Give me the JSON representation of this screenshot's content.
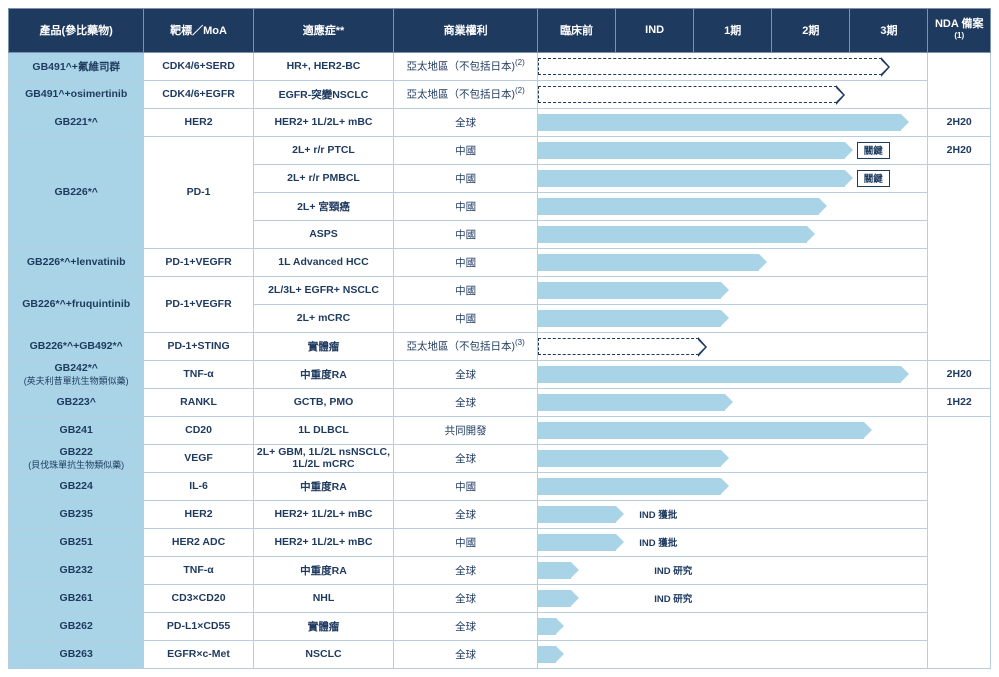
{
  "columns": {
    "product": "產品(參比藥物)",
    "moa": "靶標／MoA",
    "indication": "適應症**",
    "rights": "商業權利",
    "preclinical": "臨床前",
    "ind": "IND",
    "p1": "1期",
    "p2": "2期",
    "p3": "3期",
    "nda": "NDA 備案",
    "nda_sup": "(1)"
  },
  "phase_unit_width": 75,
  "colors": {
    "header_bg": "#1f3a5f",
    "header_fg": "#ffffff",
    "product_bg": "#a9d4e7",
    "bar_fill": "#a9d4e7",
    "border": "#b8cde0",
    "text": "#1f3a5f"
  },
  "rows": [
    {
      "product": "GB491^+氟維司群",
      "moa": "CDK4/6+SERD",
      "indication": "HR+, HER2-BC",
      "rights": "亞太地區（不包括日本)",
      "rights_sup": "(2)",
      "bar": {
        "dashed": true,
        "end_units": 4.7
      }
    },
    {
      "product": "GB491^+osimertinib",
      "moa": "CDK4/6+EGFR",
      "indication": "EGFR-突變NSCLC",
      "rights": "亞太地區（不包括日本)",
      "rights_sup": "(2)",
      "bar": {
        "dashed": true,
        "end_units": 4.1
      }
    },
    {
      "product": "GB221*^",
      "moa": "HER2",
      "indication": "HER2+ 1L/2L+ mBC",
      "rights": "全球",
      "bar": {
        "end_units": 4.95
      },
      "nda": "2H20"
    },
    {
      "product": "GB226*^",
      "product_rowspan": 4,
      "moa": "PD-1",
      "moa_rowspan": 4,
      "indication": "2L+ r/r PTCL",
      "rights": "中國",
      "bar": {
        "end_units": 4.2
      },
      "tag": "關鍵",
      "nda": "2H20"
    },
    {
      "indication": "2L+ r/r PMBCL",
      "rights": "中國",
      "bar": {
        "end_units": 4.2
      },
      "tag": "關鍵"
    },
    {
      "indication": "2L+ 宮頸癌",
      "rights": "中國",
      "bar": {
        "end_units": 3.85
      }
    },
    {
      "indication": "ASPS",
      "rights": "中國",
      "bar": {
        "end_units": 3.7
      }
    },
    {
      "product": "GB226*^+lenvatinib",
      "moa": "PD-1+VEGFR",
      "indication": "1L Advanced HCC",
      "rights": "中國",
      "bar": {
        "end_units": 3.05
      }
    },
    {
      "product": "GB226*^+fruquintinib",
      "product_rowspan": 2,
      "moa": "PD-1+VEGFR",
      "moa_rowspan": 2,
      "indication": "2L/3L+ EGFR+ NSCLC",
      "rights": "中國",
      "bar": {
        "end_units": 2.55
      }
    },
    {
      "indication": "2L+ mCRC",
      "rights": "中國",
      "bar": {
        "end_units": 2.55
      }
    },
    {
      "product": "GB226*^+GB492*^",
      "moa": "PD-1+STING",
      "indication": "實體瘤",
      "rights": "亞太地區（不包括日本)",
      "rights_sup": "(3)",
      "bar": {
        "dashed": true,
        "end_units": 2.25
      }
    },
    {
      "product": "GB242*^",
      "product_sub": "(英夫利昔單抗生物類似藥)",
      "moa": "TNF-α",
      "indication": "中重度RA",
      "rights": "全球",
      "bar": {
        "end_units": 4.95
      },
      "nda": "2H20"
    },
    {
      "product": "GB223^",
      "moa": "RANKL",
      "indication": "GCTB, PMO",
      "rights": "全球",
      "bar": {
        "end_units": 2.6
      },
      "nda": "1H22"
    },
    {
      "product": "GB241",
      "moa": "CD20",
      "indication": "1L DLBCL",
      "rights": "共同開發",
      "bar": {
        "end_units": 4.45
      }
    },
    {
      "product": "GB222",
      "product_sub": "(貝伐珠單抗生物類似藥)",
      "moa": "VEGF",
      "indication": "2L+ GBM, 1L/2L nsNSCLC, 1L/2L mCRC",
      "rights": "全球",
      "bar": {
        "end_units": 2.55
      }
    },
    {
      "product": "GB224",
      "moa": "IL-6",
      "indication": "中重度RA",
      "rights": "中國",
      "bar": {
        "end_units": 2.55
      }
    },
    {
      "product": "GB235",
      "moa": "HER2",
      "indication": "HER2+ 1L/2L+ mBC",
      "rights": "全球",
      "bar": {
        "end_units": 1.15
      },
      "bar_label": "IND 獲批",
      "bar_label_offset": 1.35
    },
    {
      "product": "GB251",
      "moa": "HER2 ADC",
      "indication": "HER2+ 1L/2L+ mBC",
      "rights": "中國",
      "bar": {
        "end_units": 1.15
      },
      "bar_label": "IND 獲批",
      "bar_label_offset": 1.35
    },
    {
      "product": "GB232",
      "moa": "TNF-α",
      "indication": "中重度RA",
      "rights": "全球",
      "bar": {
        "end_units": 0.55
      },
      "bar_label": "IND 研究",
      "bar_label_offset": 1.55
    },
    {
      "product": "GB261",
      "moa": "CD3×CD20",
      "indication": "NHL",
      "rights": "全球",
      "bar": {
        "end_units": 0.55
      },
      "bar_label": "IND 研究",
      "bar_label_offset": 1.55
    },
    {
      "product": "GB262",
      "moa": "PD-L1×CD55",
      "indication": "實體瘤",
      "rights": "全球",
      "bar": {
        "end_units": 0.35
      }
    },
    {
      "product": "GB263",
      "moa": "EGFR×c-Met",
      "indication": "NSCLC",
      "rights": "全球",
      "bar": {
        "end_units": 0.35
      }
    }
  ]
}
